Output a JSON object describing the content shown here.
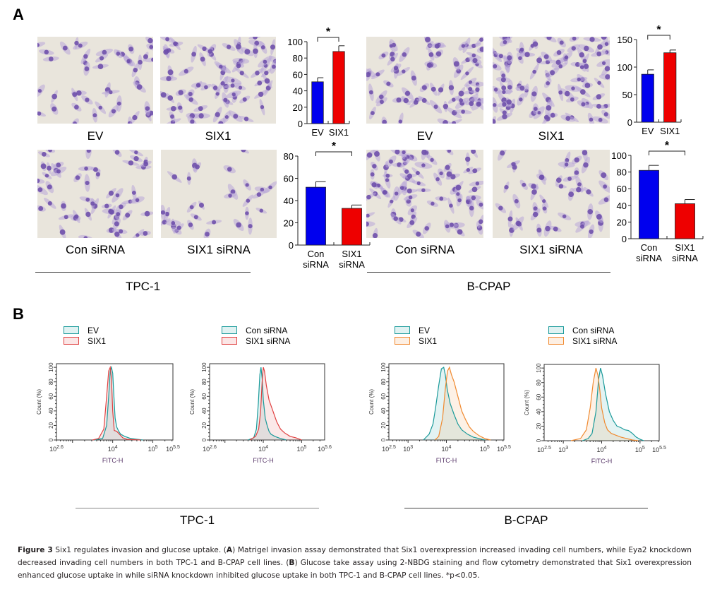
{
  "panels": {
    "A": {
      "letter": "A"
    },
    "B": {
      "letter": "B"
    }
  },
  "image_labels": {
    "tpc1_row1": [
      "EV",
      "SIX1"
    ],
    "tpc1_row2": [
      "Con siRNA",
      "SIX1 siRNA"
    ],
    "bcpap_row1": [
      "EV",
      "SIX1"
    ],
    "bcpap_row2": [
      "Con siRNA",
      "SIX1 siRNA"
    ]
  },
  "group_labels": {
    "A_left": "TPC-1",
    "A_right": "B-CPAP",
    "B_left": "TPC-1",
    "B_right": "B-CPAP"
  },
  "colors": {
    "bar_control": "#0000ee",
    "bar_treatment": "#ee0000",
    "teal": "#1a9a9a",
    "red_line": "#e04040",
    "orange_line": "#f08a30"
  },
  "chart_data": [
    {
      "id": "bar_tpc1_overexpr",
      "type": "bar",
      "title": "",
      "categories": [
        "EV",
        "SIX1"
      ],
      "values": [
        51,
        88
      ],
      "errors": [
        5,
        7
      ],
      "ylim": [
        0,
        100
      ],
      "yticks": [
        0,
        20,
        40,
        60,
        80,
        100
      ],
      "significance": "*",
      "xlabel": "",
      "ylabel": ""
    },
    {
      "id": "bar_bcpap_overexpr",
      "type": "bar",
      "title": "",
      "categories": [
        "EV",
        "SIX1"
      ],
      "values": [
        87,
        126
      ],
      "errors": [
        8,
        5
      ],
      "ylim": [
        0,
        150
      ],
      "yticks": [
        0,
        50,
        100,
        150
      ],
      "significance": "*",
      "xlabel": "",
      "ylabel": ""
    },
    {
      "id": "bar_tpc1_knockdown",
      "type": "bar",
      "title": "",
      "categories": [
        "Con siRNA",
        "SIX1 siRNA"
      ],
      "values": [
        52,
        33
      ],
      "errors": [
        5,
        3
      ],
      "ylim": [
        0,
        80
      ],
      "yticks": [
        0,
        20,
        40,
        60,
        80
      ],
      "significance": "*",
      "xlabel": "",
      "ylabel": ""
    },
    {
      "id": "bar_bcpap_knockdown",
      "type": "bar",
      "title": "",
      "categories": [
        "Con siRNA",
        "SIX1 siRNA"
      ],
      "values": [
        82,
        42
      ],
      "errors": [
        6,
        5
      ],
      "ylim": [
        0,
        100
      ],
      "yticks": [
        0,
        20,
        40,
        60,
        80,
        100
      ],
      "significance": "*",
      "xlabel": "",
      "ylabel": ""
    },
    {
      "id": "flow_tpc1_overexpr",
      "type": "area",
      "xlabel": "FITC-H",
      "ylabel": "Count (%)",
      "xscale": "log10",
      "xlim_log": [
        2.6,
        5.5
      ],
      "xtick_labels": [
        {
          "base": "10",
          "exp": "2.6",
          "at": 2.6
        },
        {
          "base": "10",
          "exp": "4",
          "at": 4
        },
        {
          "base": "10",
          "exp": "5",
          "at": 5
        },
        {
          "base": "10",
          "exp": "5.5",
          "at": 5.5
        }
      ],
      "ylim": [
        0,
        100
      ],
      "yticks": [
        0,
        20,
        40,
        60,
        80,
        100
      ],
      "legend": [
        {
          "name": "EV",
          "color": "teal"
        },
        {
          "name": "SIX1",
          "color": "red_line"
        }
      ],
      "series": [
        {
          "name": "EV",
          "color": "teal",
          "x_log": [
            3.55,
            3.75,
            3.85,
            3.9,
            3.94,
            3.97,
            4.0,
            4.03,
            4.06,
            4.1,
            4.15,
            4.2,
            4.3,
            4.45,
            4.6,
            4.75
          ],
          "y": [
            0,
            2,
            20,
            60,
            95,
            100,
            92,
            60,
            30,
            18,
            12,
            8,
            5,
            2,
            1,
            0
          ]
        },
        {
          "name": "SIX1",
          "color": "red_line",
          "x_log": [
            3.5,
            3.65,
            3.78,
            3.85,
            3.9,
            3.94,
            3.97,
            4.0,
            4.04,
            4.1,
            4.17,
            4.25,
            4.35,
            4.5,
            4.7
          ],
          "y": [
            0,
            2,
            15,
            60,
            95,
            100,
            85,
            40,
            13,
            12,
            8,
            3,
            1,
            0.5,
            0
          ]
        }
      ]
    },
    {
      "id": "flow_tpc1_knockdown",
      "type": "area",
      "xlabel": "FITC-H",
      "ylabel": "Count (%)",
      "xscale": "log10",
      "xlim_log": [
        2.6,
        5.6
      ],
      "xtick_labels": [
        {
          "base": "10",
          "exp": "2.6",
          "at": 2.6
        },
        {
          "base": "10",
          "exp": "4",
          "at": 4
        },
        {
          "base": "10",
          "exp": "5",
          "at": 5
        },
        {
          "base": "10",
          "exp": "5.6",
          "at": 5.6
        }
      ],
      "ylim": [
        0,
        100
      ],
      "yticks": [
        0,
        20,
        40,
        60,
        80,
        100
      ],
      "legend": [
        {
          "name": "Con siRNA",
          "color": "teal"
        },
        {
          "name": "SIX1 siRNA",
          "color": "red_line"
        }
      ],
      "series": [
        {
          "name": "Con siRNA",
          "color": "teal",
          "x_log": [
            3.6,
            3.75,
            3.82,
            3.87,
            3.91,
            3.94,
            3.97,
            4.0,
            4.05,
            4.1,
            4.15,
            4.2,
            4.3,
            4.45,
            4.6
          ],
          "y": [
            0,
            3,
            15,
            50,
            90,
            100,
            85,
            55,
            30,
            20,
            12,
            8,
            5,
            2,
            0
          ]
        },
        {
          "name": "SIX1 siRNA",
          "color": "red_line",
          "x_log": [
            3.65,
            3.8,
            3.88,
            3.93,
            3.97,
            4.0,
            4.03,
            4.08,
            4.15,
            4.25,
            4.35,
            4.45,
            4.55,
            4.7,
            4.85,
            5.0
          ],
          "y": [
            0,
            5,
            15,
            40,
            80,
            100,
            95,
            75,
            55,
            40,
            25,
            15,
            10,
            5,
            3,
            0
          ]
        }
      ]
    },
    {
      "id": "flow_bcpap_overexpr",
      "type": "area",
      "xlabel": "FITC-H",
      "ylabel": "Count (%)",
      "xscale": "log10",
      "xlim_log": [
        2.5,
        5.5
      ],
      "xtick_labels": [
        {
          "base": "10",
          "exp": "2.5",
          "at": 2.5
        },
        {
          "base": "10",
          "exp": "3",
          "at": 3
        },
        {
          "base": "10",
          "exp": "4",
          "at": 4
        },
        {
          "base": "10",
          "exp": "5",
          "at": 5
        },
        {
          "base": "10",
          "exp": "5.5",
          "at": 5.5
        }
      ],
      "ylim": [
        0,
        100
      ],
      "yticks": [
        0,
        20,
        40,
        60,
        80,
        100
      ],
      "legend": [
        {
          "name": "EV",
          "color": "teal"
        },
        {
          "name": "SIX1",
          "color": "orange_line"
        }
      ],
      "series": [
        {
          "name": "EV",
          "color": "teal",
          "x_log": [
            3.4,
            3.55,
            3.65,
            3.72,
            3.8,
            3.87,
            3.93,
            3.97,
            4.02,
            4.1,
            4.2,
            4.3,
            4.4,
            4.55,
            4.7,
            4.85,
            5.0
          ],
          "y": [
            0,
            8,
            22,
            45,
            75,
            98,
            100,
            90,
            70,
            50,
            35,
            22,
            14,
            8,
            4,
            2,
            0
          ]
        },
        {
          "name": "SIX1",
          "color": "orange_line",
          "x_log": [
            3.7,
            3.8,
            3.9,
            3.97,
            4.03,
            4.08,
            4.13,
            4.2,
            4.3,
            4.4,
            4.5,
            4.6,
            4.7,
            4.85,
            5.0,
            5.15
          ],
          "y": [
            0,
            5,
            30,
            70,
            95,
            100,
            90,
            80,
            60,
            40,
            28,
            18,
            12,
            6,
            2,
            0
          ]
        }
      ]
    },
    {
      "id": "flow_bcpap_knockdown",
      "type": "area",
      "xlabel": "FITC-H",
      "ylabel": "Count (%)",
      "xscale": "log10",
      "xlim_log": [
        2.5,
        5.5
      ],
      "xtick_labels": [
        {
          "base": "10",
          "exp": "2.5",
          "at": 2.5
        },
        {
          "base": "10",
          "exp": "3",
          "at": 3
        },
        {
          "base": "10",
          "exp": "4",
          "at": 4
        },
        {
          "base": "10",
          "exp": "5",
          "at": 5
        },
        {
          "base": "10",
          "exp": "5.5",
          "at": 5.5
        }
      ],
      "ylim": [
        0,
        100
      ],
      "yticks": [
        0,
        20,
        40,
        60,
        80,
        100
      ],
      "legend": [
        {
          "name": "Con siRNA",
          "color": "teal"
        },
        {
          "name": "SIX1 siRNA",
          "color": "orange_line"
        }
      ],
      "series": [
        {
          "name": "Con siRNA",
          "color": "teal",
          "x_log": [
            3.5,
            3.65,
            3.75,
            3.85,
            3.92,
            3.97,
            4.02,
            4.1,
            4.2,
            4.3,
            4.4,
            4.5,
            4.6,
            4.7,
            4.8,
            4.9,
            5.0,
            5.1
          ],
          "y": [
            0,
            3,
            10,
            40,
            85,
            100,
            90,
            65,
            40,
            28,
            20,
            18,
            15,
            14,
            10,
            5,
            2,
            0
          ]
        },
        {
          "name": "SIX1 siRNA",
          "color": "orange_line",
          "x_log": [
            3.2,
            3.45,
            3.6,
            3.7,
            3.78,
            3.85,
            3.9,
            3.95,
            4.0,
            4.08,
            4.15,
            4.25,
            4.35,
            4.5,
            4.65,
            4.8,
            4.95
          ],
          "y": [
            0,
            3,
            15,
            45,
            80,
            100,
            90,
            70,
            45,
            25,
            15,
            10,
            8,
            5,
            3,
            1,
            0
          ]
        }
      ]
    }
  ],
  "caption": {
    "label": "Figure 3",
    "text_1": " Six1 regulates invasion and glucose uptake. (",
    "A": "A",
    "text_2": ") Matrigel invasion assay demonstrated that Six1 overexpression increased invading cell numbers, while Eya2 knockdown decreased invading cell numbers in both TPC-1 and B-CPAP cell lines. (",
    "B": "B",
    "text_3": ") Glucose take assay using 2-NBDG staining and flow cytometry demonstrated that Six1 overexpression enhanced glucose uptake in while siRNA knockdown inhibited glucose uptake in both TPC-1 and B-CPAP cell lines. *p<0.05."
  }
}
